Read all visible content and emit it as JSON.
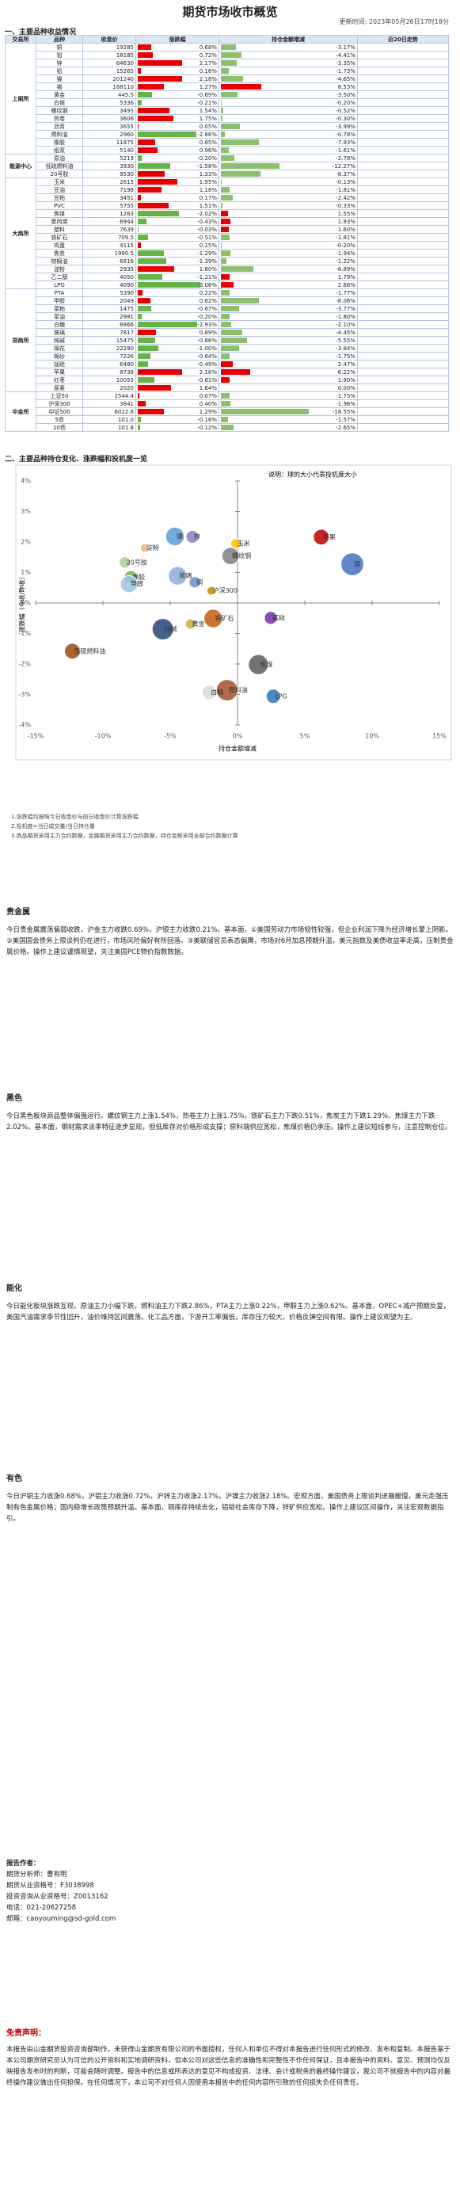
{
  "header": {
    "title": "期货市场收市概览",
    "updated": "更新时间: 2023年05月26日17时18分"
  },
  "section1": {
    "title": "一、主要品种收益情况",
    "columns": [
      "交易所",
      "品种",
      "收盘价",
      "涨跌幅",
      "持仓金额增减",
      "近20日走势"
    ],
    "groups": [
      {
        "exchange": "上期所",
        "rows": [
          [
            "铜",
            "19285",
            "0.68%",
            "-3.17%"
          ],
          [
            "铝",
            "18185",
            "0.72%",
            "-4.41%"
          ],
          [
            "锌",
            "64630",
            "2.17%",
            "-3.35%"
          ],
          [
            "铅",
            "15265",
            "0.16%",
            "-1.73%"
          ],
          [
            "镍",
            "201240",
            "2.18%",
            "-4.65%"
          ],
          [
            "锡",
            "168110",
            "1.27%",
            "8.53%"
          ],
          [
            "黄金",
            "445.5",
            "-0.69%",
            "-3.50%"
          ],
          [
            "白银",
            "5336",
            "-0.21%",
            "-0.20%"
          ],
          [
            "螺纹钢",
            "3493",
            "1.54%",
            "-0.52%"
          ],
          [
            "热卷",
            "3606",
            "1.75%",
            "-0.30%"
          ],
          [
            "沥青",
            "3655",
            "0.05%",
            "-3.99%"
          ],
          [
            "燃料油",
            "2960",
            "-2.86%",
            "-0.78%"
          ],
          [
            "橡胶",
            "11875",
            "0.85%",
            "-7.93%"
          ],
          [
            "纸浆",
            "5140",
            "0.96%",
            "-1.61%"
          ]
        ]
      },
      {
        "exchange": "能源中心",
        "rows": [
          [
            "原油",
            "5219",
            "-0.20%",
            "-2.78%"
          ],
          [
            "低硫燃料油",
            "3930",
            "-1.58%",
            "-12.27%"
          ],
          [
            "20号胶",
            "9530",
            "1.33%",
            "-8.37%"
          ]
        ]
      },
      {
        "exchange": "大商所",
        "rows": [
          [
            "玉米",
            "2615",
            "1.95%",
            "-0.13%"
          ],
          [
            "豆油",
            "7198",
            "1.18%",
            "-1.81%"
          ],
          [
            "豆粕",
            "3451",
            "0.17%",
            "-2.42%"
          ],
          [
            "PVC",
            "5755",
            "1.51%",
            "-0.33%"
          ],
          [
            "焦煤",
            "1263",
            "-2.02%",
            "1.55%"
          ],
          [
            "聚丙烯",
            "6944",
            "-0.43%",
            "1.93%"
          ],
          [
            "塑料",
            "7639",
            "-0.03%",
            "1.60%"
          ],
          [
            "铁矿石",
            "709.5",
            "-0.51%",
            "-1.81%"
          ],
          [
            "鸡蛋",
            "4115",
            "0.15%",
            "-0.20%"
          ],
          [
            "焦炭",
            "1990.5",
            "-1.29%",
            "-1.94%"
          ],
          [
            "棕榈油",
            "6816",
            "-1.39%",
            "-1.22%"
          ],
          [
            "淀粉",
            "2935",
            "1.80%",
            "-6.89%"
          ],
          [
            "乙二醇",
            "4050",
            "-1.21%",
            "1.79%"
          ],
          [
            "LPG",
            "4090",
            "-3.06%",
            "2.66%"
          ]
        ]
      },
      {
        "exchange": "郑商所",
        "rows": [
          [
            "PTA",
            "5390",
            "0.22%",
            "-1.77%"
          ],
          [
            "甲醇",
            "2049",
            "0.62%",
            "-8.06%"
          ],
          [
            "菜粕",
            "1475",
            "-0.67%",
            "-3.77%"
          ],
          [
            "菜油",
            "2981",
            "-0.20%",
            "-1.80%"
          ],
          [
            "白糖",
            "6866",
            "-2.93%",
            "-2.10%"
          ],
          [
            "玻璃",
            "7817",
            "0.89%",
            "-4.45%"
          ],
          [
            "纯碱",
            "15475",
            "-0.86%",
            "-5.55%"
          ],
          [
            "棉花",
            "22290",
            "-1.00%",
            "-3.84%"
          ],
          [
            "棉纱",
            "7226",
            "-0.64%",
            "-1.75%"
          ],
          [
            "锰硅",
            "6480",
            "-0.49%",
            "2.47%"
          ],
          [
            "苹果",
            "8738",
            "2.16%",
            "6.22%"
          ],
          [
            "红枣",
            "10055",
            "-0.81%",
            "1.90%"
          ],
          [
            "尿素",
            "2020",
            "1.64%",
            "0.00%"
          ]
        ]
      },
      {
        "exchange": "中金所",
        "rows": [
          [
            "上证50",
            "2544.4",
            "0.07%",
            "-1.75%"
          ],
          [
            "沪深300",
            "3841",
            "0.40%",
            "-1.96%"
          ],
          [
            "中证500",
            "6022.6",
            "1.29%",
            "-18.55%"
          ],
          [
            "5债",
            "101.0",
            "-0.16%",
            "-1.57%"
          ],
          [
            "10债",
            "101.8",
            "-0.12%",
            "-2.65%"
          ]
        ]
      }
    ]
  },
  "chart_data": {
    "type": "scatter",
    "title": "二、主要品种持仓变化、涨跌幅和投机度一览",
    "note": "说明：球的大小代表投机度大小",
    "xlabel": "持仓金额增减",
    "ylabel": "涨跌幅（今收/昨收）",
    "xlim": [
      -15,
      15
    ],
    "ylim": [
      -4,
      4
    ],
    "xticks": [
      {
        "value": -15,
        "label": "-15%"
      },
      {
        "value": -10,
        "label": "-10%"
      },
      {
        "value": -5,
        "label": "-5%"
      },
      {
        "value": 0,
        "label": "0%"
      },
      {
        "value": 5,
        "label": "5%"
      },
      {
        "value": 10,
        "label": "10%"
      },
      {
        "value": 15,
        "label": "15%"
      }
    ],
    "yticks": [
      {
        "value": -4,
        "label": "-4%"
      },
      {
        "value": -3,
        "label": "-3%"
      },
      {
        "value": -2,
        "label": "-2%"
      },
      {
        "value": -1,
        "label": "-1%"
      },
      {
        "value": 0,
        "label": "0%"
      },
      {
        "value": 1,
        "label": "1%"
      },
      {
        "value": 2,
        "label": "2%"
      },
      {
        "value": 3,
        "label": "3%"
      },
      {
        "value": 4,
        "label": "4%"
      }
    ],
    "points": [
      {
        "name": "铜",
        "x": -3.17,
        "y": 0.68,
        "size": 0.8,
        "color": "#6b8fc9"
      },
      {
        "name": "锌",
        "x": -3.35,
        "y": 2.17,
        "size": 0.9,
        "color": "#8e7cc3"
      },
      {
        "name": "镍",
        "x": -4.65,
        "y": 2.18,
        "size": 1.3,
        "color": "#5b9bd5"
      },
      {
        "name": "锡",
        "x": 8.53,
        "y": 1.27,
        "size": 1.6,
        "color": "#4472c4"
      },
      {
        "name": "黄金",
        "x": -3.5,
        "y": -0.69,
        "size": 0.7,
        "color": "#c9a94d"
      },
      {
        "name": "螺纹钢",
        "x": -0.52,
        "y": 1.54,
        "size": 1.2,
        "color": "#7f7f7f"
      },
      {
        "name": "燃料油",
        "x": -0.78,
        "y": -2.86,
        "size": 1.5,
        "color": "#a5502b"
      },
      {
        "name": "橡胶",
        "x": -7.93,
        "y": 0.85,
        "size": 0.9,
        "color": "#70ad47"
      },
      {
        "name": "低硫燃料油",
        "x": -12.27,
        "y": -1.58,
        "size": 1.1,
        "color": "#9e480e"
      },
      {
        "name": "20号胶",
        "x": -8.37,
        "y": 1.33,
        "size": 0.8,
        "color": "#a9d18e"
      },
      {
        "name": "玉米",
        "x": -0.13,
        "y": 1.95,
        "size": 0.7,
        "color": "#ffc000"
      },
      {
        "name": "焦煤",
        "x": 1.55,
        "y": -2.02,
        "size": 1.4,
        "color": "#5a5a5a"
      },
      {
        "name": "铁矿石",
        "x": -1.81,
        "y": -0.51,
        "size": 1.3,
        "color": "#c55a11"
      },
      {
        "name": "淀粉",
        "x": -6.89,
        "y": 1.8,
        "size": 0.6,
        "color": "#f4b183"
      },
      {
        "name": "LPG",
        "x": 2.66,
        "y": -3.06,
        "size": 1.0,
        "color": "#2e75b6"
      },
      {
        "name": "甲醇",
        "x": -8.06,
        "y": 0.62,
        "size": 1.2,
        "color": "#9dc3e6"
      },
      {
        "name": "白糖",
        "x": -2.1,
        "y": -2.93,
        "size": 1.0,
        "color": "#d9d9d9"
      },
      {
        "name": "纯碱",
        "x": -5.55,
        "y": -0.86,
        "size": 1.5,
        "color": "#264478"
      },
      {
        "name": "苹果",
        "x": 6.22,
        "y": 2.16,
        "size": 1.1,
        "color": "#c00000"
      },
      {
        "name": "锰硅",
        "x": 2.47,
        "y": -0.49,
        "size": 0.9,
        "color": "#7030a0"
      },
      {
        "name": "玻璃",
        "x": -4.45,
        "y": 0.89,
        "size": 1.3,
        "color": "#8faadc"
      },
      {
        "name": "沪深300",
        "x": -1.96,
        "y": 0.4,
        "size": 0.6,
        "color": "#bf9000"
      }
    ]
  },
  "notes": [
    "1.涨跌幅均按照今日收盘价与前日收盘价计算涨跌幅",
    "2.投机度=当日成交量/当日持仓量",
    "3.商品期货采用主力合约数据，金融期货采用主力合约数据，持仓金额采用全部合约数据计算"
  ],
  "commentary": [
    {
      "title": "贵金属",
      "text": "今日贵金属震荡偏弱收跌，沪金主力收跌0.69%，沪银主力收跌0.21%。基本面，①美国劳动力市场韧性较强，但企业利润下降为经济增长蒙上阴影。②美国国会债务上限谈判仍在进行，市场风险偏好有所回落。③美联储官员表态偏鹰，市场对6月加息预期升温，美元指数及美债收益率走高，压制贵金属价格。操作上建议谨慎观望，关注美国PCE物价指数数据。"
    },
    {
      "title": "黑色",
      "text": "今日黑色板块商品整体偏强运行。螺纹钢主力上涨1.54%，热卷主力上涨1.75%，铁矿石主力下跌0.51%，焦炭主力下跌1.29%，焦煤主力下跌2.02%。基本面，钢材需求淡季特征逐步显现，但低库存对价格形成支撑；原料端供应宽松，焦煤价格仍承压。操作上建议短线参与，注意控制仓位。"
    },
    {
      "title": "能化",
      "text": "今日能化板块涨跌互现。原油主力小幅下跌，燃料油主力下跌2.86%，PTA主力上涨0.22%，甲醇主力上涨0.62%。基本面，OPEC+减产预期反复，美国汽油需求季节性回升，油价维持区间震荡。化工品方面，下游开工率偏低，库存压力较大，价格反弹空间有限。操作上建议观望为主。"
    },
    {
      "title": "有色",
      "text": "今日沪铜主力收涨0.68%，沪铝主力收涨0.72%，沪锌主力收涨2.17%，沪镍主力收涨2.18%。宏观方面，美国债务上限谈判进展缓慢，美元走强压制有色金属价格；国内稳增长政策预期升温。基本面，铜库存持续去化，铝锭社会库存下降，锌矿供应宽松。操作上建议区间操作，关注宏观数据指引。"
    }
  ],
  "author": {
    "title": "报告作者：",
    "lines": [
      "期货分析师：曹有明",
      "期货从业资格号：F3038998",
      "投资咨询从业资格号：Z0013162",
      "电话：021-20627258",
      "邮箱：caoyouming@sd-gold.com"
    ]
  },
  "disclaimer": {
    "title": "免责声明：",
    "text": "本报告由山金期货投资咨询部制作，未获得山金期货有限公司的书面授权，任何人和单位不得对本报告进行任何形式的修改、发布和复制。本报告基于本公司期货研究员认为可信的公开资料和实地调研资料，但本公司对这些信息的准确性和完整性不作任何保证，且本报告中的资料、意见、预测均仅反映报告发布时的判断，可能会随时调整。报告中的信息或所表达的意见不构成投资、法律、会计或税务的最终操作建议，我公司不就报告中的内容对最终操作建议做出任何担保。在任何情况下，本公司不对任何人因使用本报告中的任何内容所引致的任何损失负任何责任。"
  }
}
